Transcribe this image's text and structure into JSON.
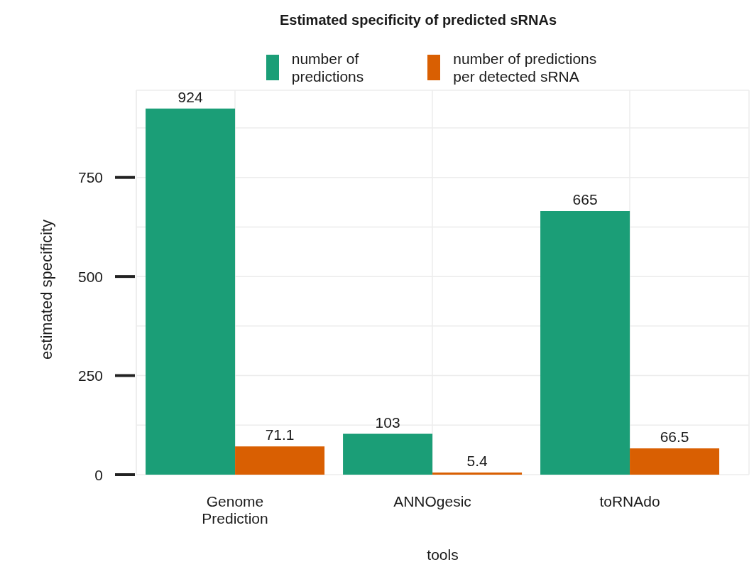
{
  "chart_data": {
    "type": "bar",
    "title": "Estimated specificity of predicted sRNAs",
    "xlabel": "tools",
    "ylabel": "estimated specificity",
    "categories": [
      "Genome Prediction",
      "ANNOgesic",
      "toRNAdo"
    ],
    "series": [
      {
        "name": "number of predictions",
        "color": "#1b9e77",
        "values": [
          924,
          103,
          665
        ]
      },
      {
        "name": "number of predictions per detected sRNA",
        "color": "#d95f02",
        "values": [
          71.1,
          5.4,
          66.5
        ]
      }
    ],
    "ylim": [
      0,
      970
    ],
    "yticks": [
      0,
      {
        "value": 125,
        "label": null
      },
      250,
      {
        "value": 375,
        "label": null
      },
      500,
      {
        "value": 625,
        "label": null
      },
      750,
      {
        "value": 875,
        "label": null
      }
    ],
    "grid": true,
    "legend": "top",
    "data_labels": true
  }
}
